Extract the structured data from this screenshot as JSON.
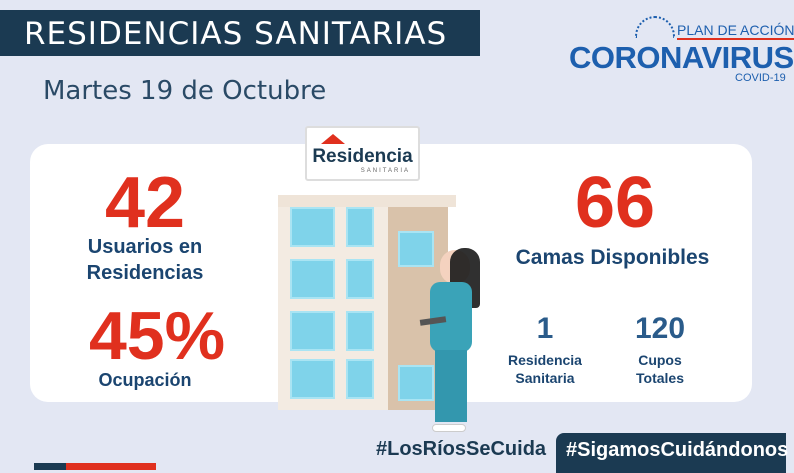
{
  "header": {
    "title": "RESIDENCIAS SANITARIAS",
    "date": "Martes 19 de Octubre"
  },
  "logo": {
    "plan": "PLAN DE ACCIÓN",
    "main": "CORONAVIRUS",
    "sub": "COVID-19"
  },
  "sign": {
    "name": "Residencia",
    "sub": "SANITARIA"
  },
  "stats": {
    "users_value": "42",
    "users_label1": "Usuarios en",
    "users_label2": "Residencias",
    "occupancy_value": "45%",
    "occupancy_label": "Ocupación",
    "beds_value": "66",
    "beds_label": "Camas Disponibles",
    "residences_value": "1",
    "residences_label1": "Residencia",
    "residences_label2": "Sanitaria",
    "quota_value": "120",
    "quota_label1": "Cupos",
    "quota_label2": "Totales"
  },
  "footer": {
    "hashtag1": "#LosRíosSeCuida",
    "hashtag2": "#SigamosCuidándonos"
  },
  "colors": {
    "accent_red": "#e0301e",
    "navy": "#1b3a52",
    "brand_blue": "#1d5fae"
  }
}
